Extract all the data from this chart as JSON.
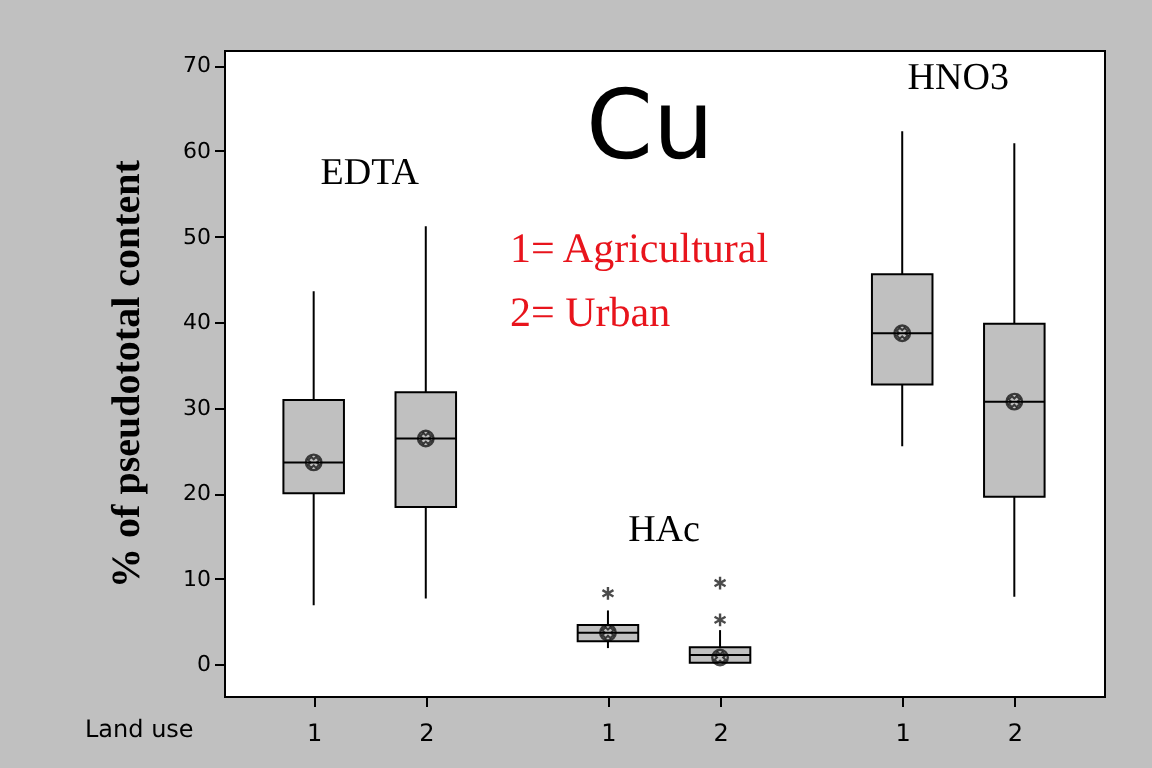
{
  "chart_data": {
    "type": "box",
    "title": "Cu",
    "xlabel": "Land use",
    "ylabel": "% of pseudototal content",
    "categories": [
      "1",
      "2",
      "1",
      "2",
      "1",
      "2"
    ],
    "boxes": [
      {
        "low": 6.9,
        "q1": 20,
        "median": 23.6,
        "q3": 30.9,
        "high": 43.6,
        "mean": 23.6
      },
      {
        "low": 7.7,
        "q1": 18.4,
        "median": 26.4,
        "q3": 31.8,
        "high": 51.2,
        "mean": 26.4
      },
      {
        "low": 1.9,
        "q1": 2.7,
        "median": 3.7,
        "q3": 4.6,
        "high": 6.3,
        "mean": 3.7,
        "outliers": [
          8.3
        ]
      },
      {
        "low": 0.2,
        "q1": 0.2,
        "median": 1.1,
        "q3": 2.0,
        "high": 4.0,
        "mean": 0.8,
        "outliers": [
          5.2,
          9.5
        ]
      },
      {
        "low": 25.5,
        "q1": 32.7,
        "median": 38.7,
        "q3": 45.6,
        "high": 62.3,
        "mean": 38.7
      },
      {
        "low": 7.9,
        "q1": 19.6,
        "median": 30.7,
        "q3": 39.8,
        "high": 60.9,
        "mean": 30.7
      }
    ],
    "color": "#c0c0c0",
    "annotations": [
      "EDTA",
      "HAc",
      "HNO3",
      "1= Agricultural",
      "2= Urban"
    ],
    "ylim": [
      -3.7,
      71.8
    ],
    "yticks": [
      0,
      10,
      20,
      30,
      40,
      50,
      60,
      70
    ],
    "grid": false
  }
}
